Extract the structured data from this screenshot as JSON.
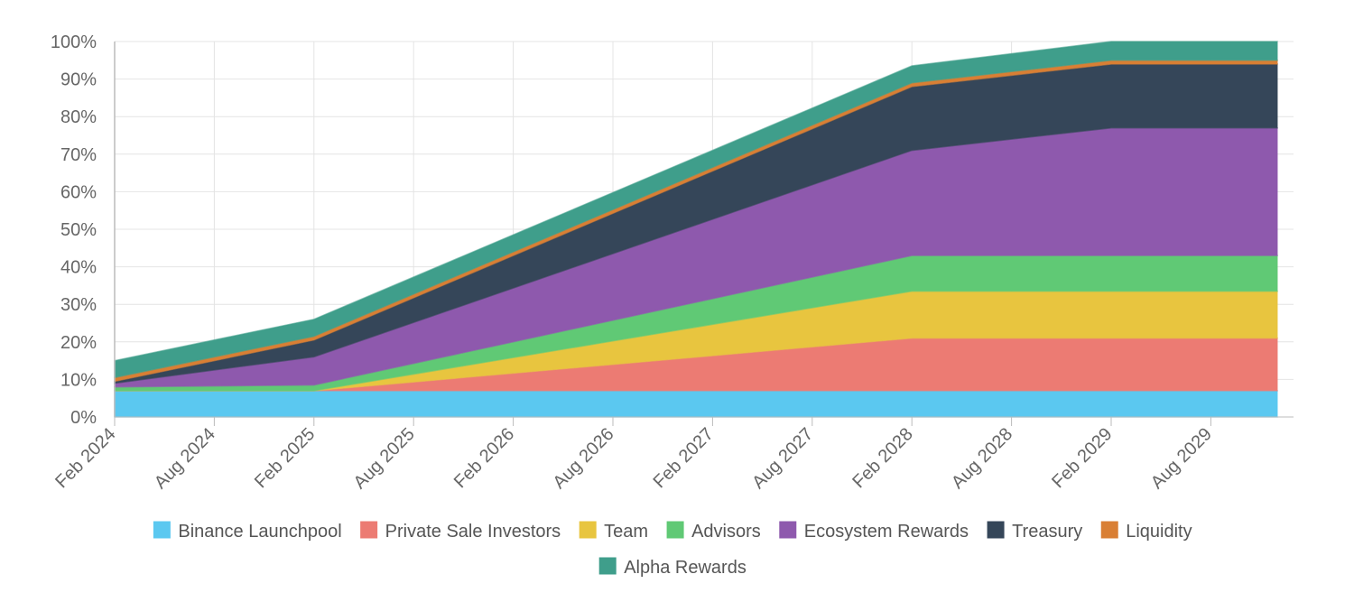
{
  "chart_data": {
    "type": "area",
    "stacked": true,
    "x": [
      "Feb 2024",
      "Feb 2025",
      "Feb 2028",
      "Feb 2029",
      "Dec 2029"
    ],
    "x_ticks": [
      "Feb 2024",
      "Aug 2024",
      "Feb 2025",
      "Aug 2025",
      "Feb 2026",
      "Aug 2026",
      "Feb 2027",
      "Aug 2027",
      "Feb 2028",
      "Aug 2028",
      "Feb 2029",
      "Aug 2029"
    ],
    "y_ticks": [
      "0%",
      "10%",
      "20%",
      "30%",
      "40%",
      "50%",
      "60%",
      "70%",
      "80%",
      "90%",
      "100%"
    ],
    "ylim": [
      0,
      100
    ],
    "grid": true,
    "legend_position": "bottom",
    "series": [
      {
        "name": "Binance Launchpool",
        "color": "#5bc8f0",
        "values": [
          7,
          7,
          7,
          7,
          7
        ]
      },
      {
        "name": "Private Sale Investors",
        "color": "#ec7b73",
        "values": [
          0,
          0,
          14,
          14,
          14
        ]
      },
      {
        "name": "Team",
        "color": "#e8c53f",
        "values": [
          0,
          0,
          12.5,
          12.5,
          12.5
        ]
      },
      {
        "name": "Advisors",
        "color": "#60c975",
        "values": [
          1,
          1.5,
          9.5,
          9.5,
          9.5
        ]
      },
      {
        "name": "Ecosystem Rewards",
        "color": "#8e59ad",
        "values": [
          1,
          7.5,
          28,
          34,
          34
        ]
      },
      {
        "name": "Treasury",
        "color": "#354659",
        "values": [
          0.5,
          4.5,
          17,
          17,
          17
        ]
      },
      {
        "name": "Liquidity",
        "color": "#d97f34",
        "values": [
          1,
          1,
          1,
          1,
          1
        ]
      },
      {
        "name": "Alpha Rewards",
        "color": "#3f9e8b",
        "values": [
          4.5,
          4.5,
          4.5,
          5,
          5
        ]
      }
    ]
  }
}
